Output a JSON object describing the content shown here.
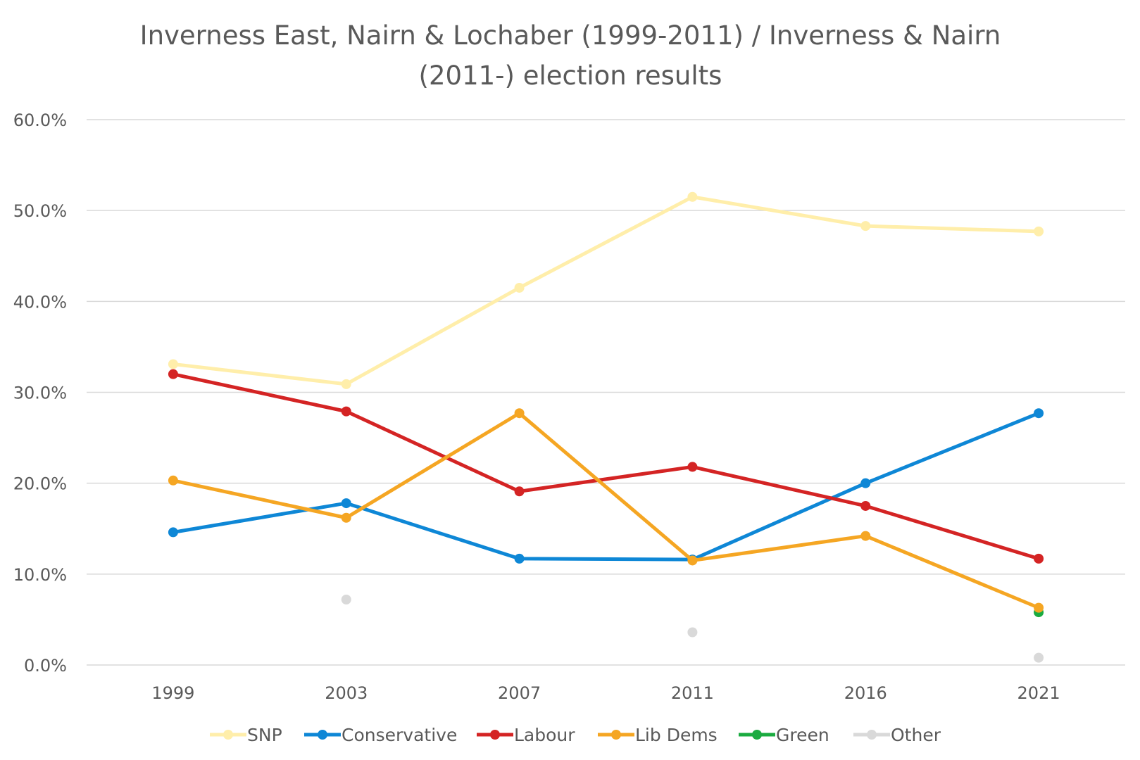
{
  "chart_data": {
    "type": "line",
    "title_line1": "Inverness East, Nairn & Lochaber (1999-2011) / Inverness & Nairn",
    "title_line2": "(2011-) election results",
    "xlabel": "",
    "ylabel": "",
    "categories": [
      "1999",
      "2003",
      "2007",
      "2011",
      "2016",
      "2021"
    ],
    "ylim": [
      0,
      60
    ],
    "yticks": [
      0,
      10,
      20,
      30,
      40,
      50,
      60
    ],
    "ytick_labels": [
      "0.0%",
      "10.0%",
      "20.0%",
      "30.0%",
      "40.0%",
      "50.0%",
      "60.0%"
    ],
    "grid": true,
    "legend_position": "bottom",
    "series": [
      {
        "name": "SNP",
        "color": "#ffeeaa",
        "line": true,
        "values": [
          33.1,
          30.9,
          41.5,
          51.5,
          48.3,
          47.7
        ]
      },
      {
        "name": "Conservative",
        "color": "#0e87d6",
        "line": true,
        "values": [
          14.6,
          17.8,
          11.7,
          11.6,
          20.0,
          27.7
        ]
      },
      {
        "name": "Labour",
        "color": "#d42424",
        "line": true,
        "values": [
          32.0,
          27.9,
          19.1,
          21.8,
          17.5,
          11.7
        ]
      },
      {
        "name": "Lib Dems",
        "color": "#f5a623",
        "line": true,
        "values": [
          20.3,
          16.2,
          27.7,
          11.5,
          14.2,
          6.3
        ]
      },
      {
        "name": "Green",
        "color": "#1aab40",
        "line": false,
        "values": [
          null,
          null,
          null,
          null,
          null,
          5.8
        ]
      },
      {
        "name": "Other",
        "color": "#d9d9d9",
        "line": false,
        "values": [
          null,
          7.2,
          null,
          3.6,
          null,
          0.8
        ]
      }
    ]
  }
}
